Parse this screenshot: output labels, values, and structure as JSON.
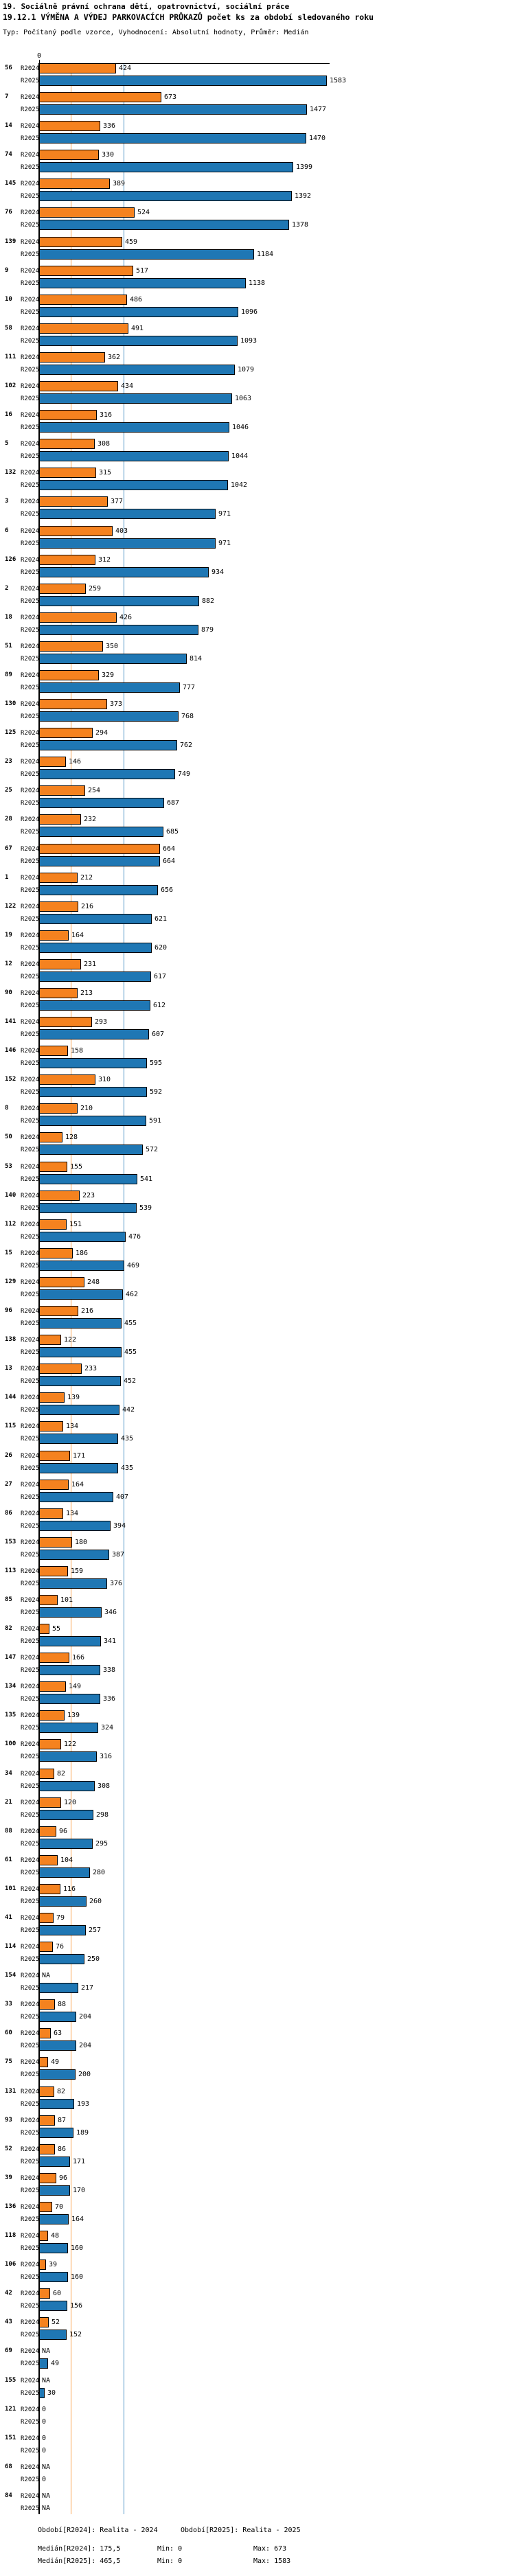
{
  "header": {
    "title": "19. Sociálně právní ochrana dětí, opatrovnictví, sociální práce",
    "subtitle": "19.12.1 VÝMĚNA A VÝDEJ PARKOVACÍCH PRŮKAZŮ počet ks za období sledovaného roku",
    "meta": "Typ: Počítaný podle vzorce, Vyhodnocení: Absolutní hodnoty, Průměr: Medián"
  },
  "chart_data": {
    "type": "bar",
    "orientation": "horizontal",
    "title": "19.12.1 VÝMĚNA A VÝDEJ PARKOVACÍCH PRŮKAZŮ počet ks za období sledovaného roku",
    "x_tick_zero": "0",
    "xlim": [
      0,
      1600
    ],
    "grid": false,
    "series": [
      {
        "name": "R2024",
        "color": "#f5821f",
        "median": 175.5,
        "median_line_color": "#f9a14d"
      },
      {
        "name": "R2025",
        "color": "#1f77b4",
        "median": 465.5,
        "median_line_color": "#4d94c6"
      }
    ],
    "groups": [
      {
        "label": "56",
        "values": [
          424,
          1583
        ]
      },
      {
        "label": "7",
        "values": [
          673,
          1477
        ]
      },
      {
        "label": "14",
        "values": [
          336,
          1470
        ]
      },
      {
        "label": "74",
        "values": [
          330,
          1399
        ]
      },
      {
        "label": "145",
        "values": [
          389,
          1392
        ]
      },
      {
        "label": "76",
        "values": [
          524,
          1378
        ]
      },
      {
        "label": "139",
        "values": [
          459,
          1184
        ]
      },
      {
        "label": "9",
        "values": [
          517,
          1138
        ]
      },
      {
        "label": "10",
        "values": [
          486,
          1096
        ]
      },
      {
        "label": "58",
        "values": [
          491,
          1093
        ]
      },
      {
        "label": "111",
        "values": [
          362,
          1079
        ]
      },
      {
        "label": "102",
        "values": [
          434,
          1063
        ]
      },
      {
        "label": "16",
        "values": [
          316,
          1046
        ]
      },
      {
        "label": "5",
        "values": [
          308,
          1044
        ]
      },
      {
        "label": "132",
        "values": [
          315,
          1042
        ]
      },
      {
        "label": "3",
        "values": [
          377,
          971
        ]
      },
      {
        "label": "6",
        "values": [
          403,
          971
        ]
      },
      {
        "label": "126",
        "values": [
          312,
          934
        ]
      },
      {
        "label": "2",
        "values": [
          259,
          882
        ]
      },
      {
        "label": "18",
        "values": [
          426,
          879
        ]
      },
      {
        "label": "51",
        "values": [
          350,
          814
        ]
      },
      {
        "label": "89",
        "values": [
          329,
          777
        ]
      },
      {
        "label": "130",
        "values": [
          373,
          768
        ]
      },
      {
        "label": "125",
        "values": [
          294,
          762
        ]
      },
      {
        "label": "23",
        "values": [
          146,
          749
        ]
      },
      {
        "label": "25",
        "values": [
          254,
          687
        ]
      },
      {
        "label": "28",
        "values": [
          232,
          685
        ]
      },
      {
        "label": "67",
        "values": [
          664,
          664
        ]
      },
      {
        "label": "1",
        "values": [
          212,
          656
        ]
      },
      {
        "label": "122",
        "values": [
          216,
          621
        ]
      },
      {
        "label": "19",
        "values": [
          164,
          620
        ]
      },
      {
        "label": "12",
        "values": [
          231,
          617
        ]
      },
      {
        "label": "90",
        "values": [
          213,
          612
        ]
      },
      {
        "label": "141",
        "values": [
          293,
          607
        ]
      },
      {
        "label": "146",
        "values": [
          158,
          595
        ]
      },
      {
        "label": "152",
        "values": [
          310,
          592
        ]
      },
      {
        "label": "8",
        "values": [
          210,
          591
        ]
      },
      {
        "label": "50",
        "values": [
          128,
          572
        ]
      },
      {
        "label": "53",
        "values": [
          155,
          541
        ]
      },
      {
        "label": "140",
        "values": [
          223,
          539
        ]
      },
      {
        "label": "112",
        "values": [
          151,
          476
        ]
      },
      {
        "label": "15",
        "values": [
          186,
          469
        ]
      },
      {
        "label": "129",
        "values": [
          248,
          462
        ]
      },
      {
        "label": "96",
        "values": [
          216,
          455
        ]
      },
      {
        "label": "138",
        "values": [
          122,
          455
        ]
      },
      {
        "label": "13",
        "values": [
          233,
          452
        ]
      },
      {
        "label": "144",
        "values": [
          139,
          442
        ]
      },
      {
        "label": "115",
        "values": [
          134,
          435
        ]
      },
      {
        "label": "26",
        "values": [
          171,
          435
        ]
      },
      {
        "label": "27",
        "values": [
          164,
          407
        ]
      },
      {
        "label": "86",
        "values": [
          134,
          394
        ]
      },
      {
        "label": "153",
        "values": [
          180,
          387
        ]
      },
      {
        "label": "113",
        "values": [
          159,
          376
        ]
      },
      {
        "label": "85",
        "values": [
          101,
          346
        ]
      },
      {
        "label": "82",
        "values": [
          55,
          341
        ]
      },
      {
        "label": "147",
        "values": [
          166,
          338
        ]
      },
      {
        "label": "134",
        "values": [
          149,
          336
        ]
      },
      {
        "label": "135",
        "values": [
          139,
          324
        ]
      },
      {
        "label": "100",
        "values": [
          122,
          316
        ]
      },
      {
        "label": "34",
        "values": [
          82,
          308
        ]
      },
      {
        "label": "21",
        "values": [
          120,
          298
        ]
      },
      {
        "label": "88",
        "values": [
          96,
          295
        ]
      },
      {
        "label": "61",
        "values": [
          104,
          280
        ]
      },
      {
        "label": "101",
        "values": [
          116,
          260
        ]
      },
      {
        "label": "41",
        "values": [
          79,
          257
        ]
      },
      {
        "label": "114",
        "values": [
          76,
          250
        ]
      },
      {
        "label": "154",
        "values": [
          "NA",
          217
        ]
      },
      {
        "label": "33",
        "values": [
          88,
          204
        ]
      },
      {
        "label": "60",
        "values": [
          63,
          204
        ]
      },
      {
        "label": "75",
        "values": [
          49,
          200
        ]
      },
      {
        "label": "131",
        "values": [
          82,
          193
        ]
      },
      {
        "label": "93",
        "values": [
          87,
          189
        ]
      },
      {
        "label": "52",
        "values": [
          86,
          171
        ]
      },
      {
        "label": "39",
        "values": [
          96,
          170
        ]
      },
      {
        "label": "136",
        "values": [
          70,
          164
        ]
      },
      {
        "label": "118",
        "values": [
          48,
          160
        ]
      },
      {
        "label": "106",
        "values": [
          39,
          160
        ]
      },
      {
        "label": "42",
        "values": [
          60,
          156
        ]
      },
      {
        "label": "43",
        "values": [
          52,
          152
        ]
      },
      {
        "label": "69",
        "values": [
          "NA",
          49
        ]
      },
      {
        "label": "155",
        "values": [
          "NA",
          30
        ]
      },
      {
        "label": "121",
        "values": [
          0,
          0
        ]
      },
      {
        "label": "151",
        "values": [
          0,
          0
        ]
      },
      {
        "label": "68",
        "values": [
          "NA",
          0
        ]
      },
      {
        "label": "84",
        "values": [
          "NA",
          "NA"
        ]
      }
    ]
  },
  "footer": {
    "period_r2024": "Období[R2024]: Realita - 2024",
    "period_r2025": "Období[R2025]: Realita - 2025",
    "median_r2024": "Medián[R2024]: 175,5",
    "min_r2024": "Min: 0",
    "max_r2024": "Max: 673",
    "median_r2025": "Medián[R2025]: 465,5",
    "min_r2025": "Min: 0",
    "max_r2025": "Max: 1583"
  }
}
